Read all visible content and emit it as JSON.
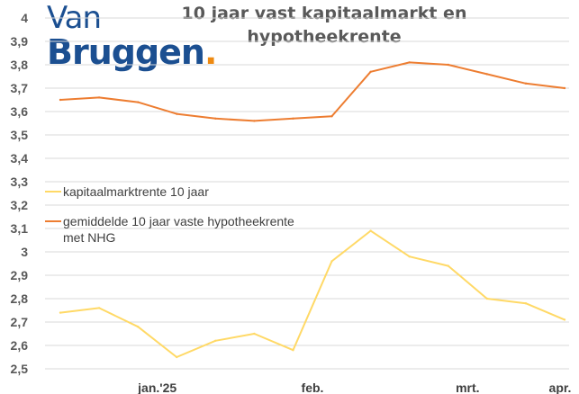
{
  "brand": {
    "logo_line1": "Van",
    "logo_line2": "Bruggen",
    "logo_dot": "."
  },
  "chart_data": {
    "type": "line",
    "title": "10 jaar vast kapitaalmarkt en hypotheekrente",
    "title_lines": [
      "10 jaar vast kapitaalmarkt en",
      "hypotheekrente"
    ],
    "ylim": [
      2.5,
      4.0
    ],
    "y_ticks": [
      "2,5",
      "2,6",
      "2,7",
      "2,8",
      "2,9",
      "3",
      "3,1",
      "3,2",
      "3,3",
      "3,4",
      "3,5",
      "3,6",
      "3,7",
      "3,8",
      "3,9",
      "4"
    ],
    "x_ticks": [
      {
        "label": "jan.'25",
        "index": 2.5
      },
      {
        "label": "feb.",
        "index": 6.5
      },
      {
        "label": "mrt.",
        "index": 10.5
      },
      {
        "label": "apr.",
        "index": 13.8
      }
    ],
    "grid": true,
    "legend_position": "middle-left",
    "series": [
      {
        "name": "kapitaalmarktrente 10 jaar",
        "legend_lines": [
          "kapitaalmarktrente 10 jaar"
        ],
        "color": "#ffd966",
        "values": [
          2.74,
          2.76,
          2.68,
          2.55,
          2.62,
          2.65,
          2.58,
          2.96,
          3.09,
          2.98,
          2.94,
          2.8,
          2.78,
          2.71
        ]
      },
      {
        "name": "gemiddelde 10 jaar vaste hypotheekrente met NHG",
        "legend_lines": [
          "gemiddelde 10 jaar vaste hypotheekrente",
          "met NHG"
        ],
        "color": "#ed7d31",
        "values": [
          3.65,
          3.66,
          3.64,
          3.59,
          3.57,
          3.56,
          3.57,
          3.58,
          3.77,
          3.81,
          3.8,
          3.76,
          3.72,
          3.7
        ]
      }
    ]
  }
}
